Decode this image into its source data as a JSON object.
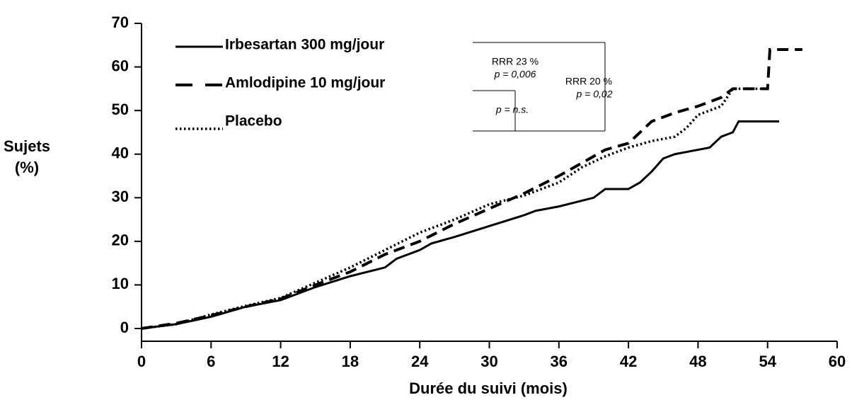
{
  "chart_data": {
    "type": "line",
    "x_label": "Durée du suivi (mois)",
    "y_label": "Sujets (%)",
    "xlim": [
      0,
      60
    ],
    "xticks": [
      0,
      6,
      12,
      18,
      24,
      30,
      36,
      42,
      48,
      54,
      60
    ],
    "ylim": [
      0,
      70
    ],
    "yticks": [
      0,
      10,
      20,
      30,
      40,
      50,
      60,
      70
    ],
    "series": [
      {
        "name": "Irbesartan 300 mg/jour",
        "color": "#000000",
        "style": "solid",
        "x": [
          0,
          3,
          6,
          9,
          12,
          15,
          18,
          21,
          22,
          24,
          25,
          27,
          30,
          33,
          34,
          36,
          39,
          40,
          42,
          43,
          44,
          45,
          46,
          48,
          49,
          50,
          51,
          51.5,
          55
        ],
        "values": [
          0,
          1,
          2.7,
          5,
          6.5,
          9.5,
          12,
          14,
          16,
          18,
          19.5,
          21,
          23.5,
          26,
          27,
          28,
          30,
          32,
          32,
          33.5,
          36,
          39,
          40,
          41,
          41.5,
          44,
          45,
          47.5,
          47.5
        ]
      },
      {
        "name": "Amlodipine 10 mg/jour",
        "color": "#000000",
        "style": "dashed",
        "x": [
          0,
          3,
          6,
          9,
          12,
          15,
          18,
          21,
          24,
          27,
          30,
          33,
          36,
          38,
          40,
          42,
          43,
          44,
          46,
          48,
          49,
          50,
          51,
          54,
          54.2,
          57
        ],
        "values": [
          0,
          1.2,
          3,
          5,
          6.8,
          10,
          13,
          17,
          20,
          24,
          27.5,
          31,
          35,
          38,
          41,
          42.5,
          45,
          47.5,
          49.5,
          51,
          52,
          53,
          55,
          55,
          64,
          64
        ]
      },
      {
        "name": "Placebo",
        "color": "#000000",
        "style": "dotted",
        "x": [
          0,
          3,
          6,
          9,
          12,
          15,
          18,
          21,
          24,
          27,
          30,
          33,
          36,
          38,
          40,
          42,
          44,
          46,
          47,
          48,
          49,
          50,
          51,
          54
        ],
        "values": [
          0,
          1,
          3.2,
          5.2,
          7,
          10.5,
          14,
          18,
          22,
          25,
          28.5,
          30.5,
          33.5,
          37,
          39.5,
          41.5,
          43,
          44,
          46,
          49,
          50,
          51,
          55,
          55
        ]
      }
    ],
    "annotations": [
      "RRR 23 %",
      "p = 0,006",
      "RRR 20 %",
      "p = 0,02",
      "p = n.s."
    ]
  }
}
